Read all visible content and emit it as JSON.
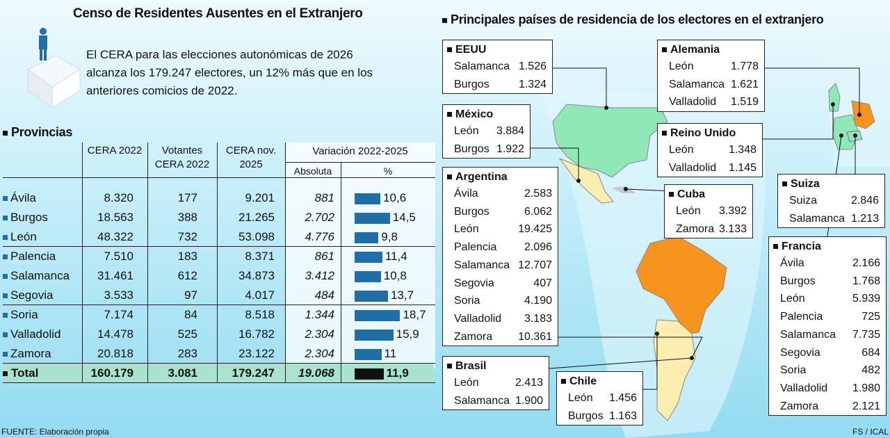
{
  "header": {
    "title": "Censo de Residentes Ausentes en el Extranjero",
    "intro": "El CERA para las elecciones autonómicas de 2026 alcanza los 179.247 electores, un 12% más que en los anteriores comicios de 2022."
  },
  "table": {
    "section_title": "Provincias",
    "headers": {
      "cera2022": "CERA 2022",
      "votantes": "Votantes CERA 2022",
      "cera2025": "CERA nov. 2025",
      "variacion": "Variación 2022-2025",
      "absoluta": "Absoluta",
      "pct": "%"
    },
    "rows": [
      {
        "name": "Ávila",
        "cera2022": "8.320",
        "votantes": "177",
        "cera2025": "9.201",
        "abs": "881",
        "pct": "10,6"
      },
      {
        "name": "Burgos",
        "cera2022": "18.563",
        "votantes": "388",
        "cera2025": "21.265",
        "abs": "2.702",
        "pct": "14,5"
      },
      {
        "name": "León",
        "cera2022": "48.322",
        "votantes": "732",
        "cera2025": "53.098",
        "abs": "4.776",
        "pct": "9,8"
      },
      {
        "name": "Palencia",
        "cera2022": "7.510",
        "votantes": "183",
        "cera2025": "8.371",
        "abs": "861",
        "pct": "11,4"
      },
      {
        "name": "Salamanca",
        "cera2022": "31.461",
        "votantes": "612",
        "cera2025": "34.873",
        "abs": "3.412",
        "pct": "10,8"
      },
      {
        "name": "Segovia",
        "cera2022": "3.533",
        "votantes": "97",
        "cera2025": "4.017",
        "abs": "484",
        "pct": "13,7"
      },
      {
        "name": "Soria",
        "cera2022": "7.174",
        "votantes": "84",
        "cera2025": "8.518",
        "abs": "1.344",
        "pct": "18,7"
      },
      {
        "name": "Valladolid",
        "cera2022": "14.478",
        "votantes": "525",
        "cera2025": "16.782",
        "abs": "2.304",
        "pct": "15,9"
      },
      {
        "name": "Zamora",
        "cera2022": "20.818",
        "votantes": "283",
        "cera2025": "23.122",
        "abs": "2.304",
        "pct": "11"
      }
    ],
    "total": {
      "name": "Total",
      "cera2022": "160.179",
      "votantes": "3.081",
      "cera2025": "179.247",
      "abs": "19.068",
      "pct": "11,9"
    }
  },
  "chart_data": {
    "type": "bar",
    "title": "",
    "xlabel": "",
    "ylabel": "%",
    "categories": [
      "Ávila",
      "Burgos",
      "León",
      "Palencia",
      "Salamanca",
      "Segovia",
      "Soria",
      "Valladolid",
      "Zamora",
      "Total"
    ],
    "values": [
      10.6,
      14.5,
      9.8,
      11.4,
      10.8,
      13.7,
      18.7,
      15.9,
      11,
      11.9
    ],
    "orientation": "horizontal",
    "colors": {
      "provinces": "#1f6fa6",
      "total": "#111111"
    }
  },
  "map": {
    "title": "Principales países de residencia de los electores en el extranjero",
    "colors": {
      "green": "#8fe8b8",
      "orange": "#f7941d",
      "beige": "#fbeeb0"
    },
    "boxes": [
      {
        "country": "EEUU",
        "items": [
          [
            "Salamanca",
            "1.526"
          ],
          [
            "Burgos",
            "1.324"
          ]
        ]
      },
      {
        "country": "México",
        "items": [
          [
            "León",
            "3.884"
          ],
          [
            "Burgos",
            "1.922"
          ]
        ]
      },
      {
        "country": "Argentina",
        "items": [
          [
            "Ávila",
            "2.583"
          ],
          [
            "Burgos",
            "6.062"
          ],
          [
            "León",
            "19.425"
          ],
          [
            "Palencia",
            "2.096"
          ],
          [
            "Salamanca",
            "12.707"
          ],
          [
            "Segovia",
            "407"
          ],
          [
            "Soria",
            "4.190"
          ],
          [
            "Valladolid",
            "3.183"
          ],
          [
            "Zamora",
            "10.361"
          ]
        ]
      },
      {
        "country": "Brasil",
        "items": [
          [
            "León",
            "2.413"
          ],
          [
            "Salamanca",
            "1.900"
          ]
        ]
      },
      {
        "country": "Chile",
        "items": [
          [
            "León",
            "1.456"
          ],
          [
            "Burgos",
            "1.163"
          ]
        ]
      },
      {
        "country": "Cuba",
        "items": [
          [
            "León",
            "3.392"
          ],
          [
            "Zamora",
            "3.133"
          ]
        ]
      },
      {
        "country": "Alemania",
        "items": [
          [
            "León",
            "1.778"
          ],
          [
            "Salamanca",
            "1.621"
          ],
          [
            "Valladolid",
            "1.519"
          ]
        ]
      },
      {
        "country": "Reino Unido",
        "items": [
          [
            "León",
            "1.348"
          ],
          [
            "Valladolid",
            "1.145"
          ]
        ]
      },
      {
        "country": "Suiza",
        "items": [
          [
            "Suiza",
            "2.846"
          ],
          [
            "Salamanca",
            "1.213"
          ]
        ]
      },
      {
        "country": "Francia",
        "items": [
          [
            "Ávila",
            "2.166"
          ],
          [
            "Burgos",
            "1.768"
          ],
          [
            "León",
            "5.939"
          ],
          [
            "Palencia",
            "725"
          ],
          [
            "Salamanca",
            "7.735"
          ],
          [
            "Segovia",
            "684"
          ],
          [
            "Soria",
            "482"
          ],
          [
            "Valladolid",
            "1.980"
          ],
          [
            "Zamora",
            "2.121"
          ]
        ]
      }
    ]
  },
  "footer": {
    "source": "FUENTE: Elaboración propia",
    "credit": "FS / ICAL"
  }
}
